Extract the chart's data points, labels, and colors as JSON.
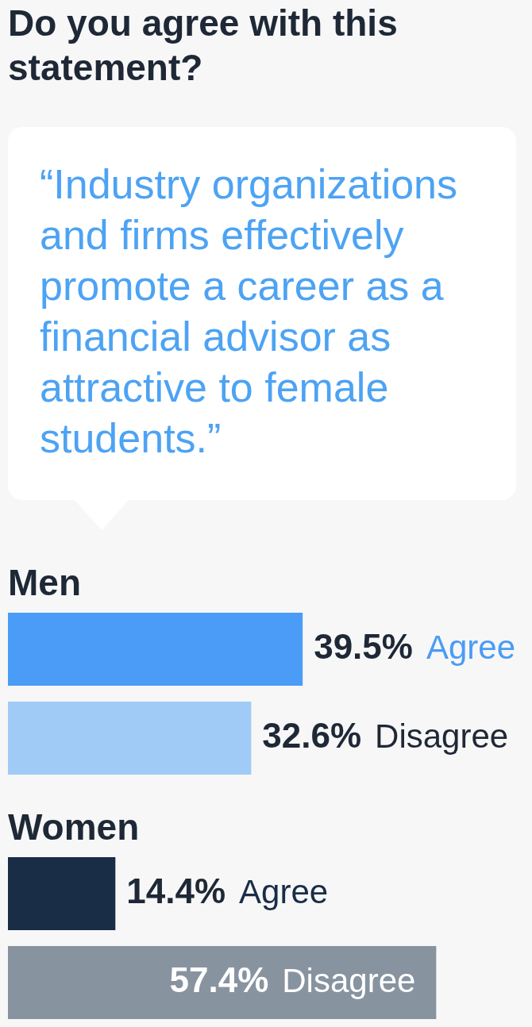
{
  "chart_data": {
    "type": "bar",
    "orientation": "horizontal",
    "title": "Do you agree with this statement?",
    "subtitle": "“Industry organizations and firms effectively promote a career as a financial advisor as attractive to female students.”",
    "categories": [
      "Men",
      "Women"
    ],
    "series": [
      {
        "name": "Agree",
        "colors": [
          "#4a9cf6",
          "#1a2d47"
        ],
        "values": [
          39.5,
          14.4
        ],
        "value_labels": [
          "39.5%",
          "14.4%"
        ]
      },
      {
        "name": "Disagree",
        "colors": [
          "#a0cbf6",
          "#8893a0"
        ],
        "values": [
          32.6,
          57.4
        ],
        "value_labels": [
          "32.6%",
          "57.4%"
        ]
      }
    ]
  }
}
